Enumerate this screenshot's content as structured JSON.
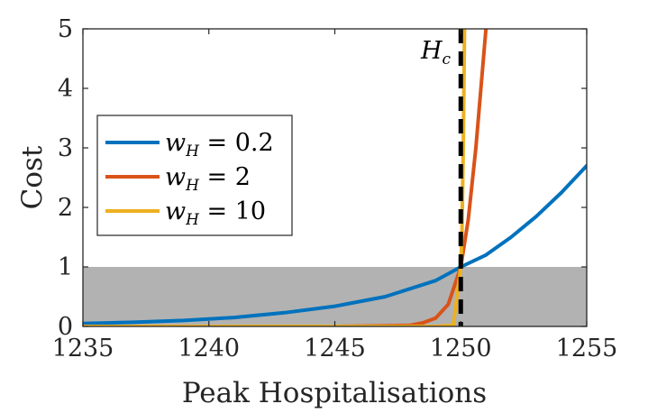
{
  "chart_data": {
    "type": "line",
    "title": "",
    "xlabel": "Peak Hospitalisations",
    "ylabel": "Cost",
    "xlim": [
      1235,
      1255
    ],
    "ylim": [
      0,
      5
    ],
    "xticks": [
      1235,
      1240,
      1245,
      1250,
      1255
    ],
    "yticks": [
      0,
      1,
      2,
      3,
      4,
      5
    ],
    "grid": false,
    "legend_position": "left",
    "threshold": {
      "label": "H",
      "label_sub": "c",
      "x": 1250,
      "style": "dashed",
      "color": "#000000"
    },
    "shaded_region": {
      "y": [
        0,
        1
      ],
      "color": "#b2b2b2"
    },
    "series": [
      {
        "name": "w_H = 0.2",
        "legend": {
          "w": "w",
          "sub": "H",
          "rest": " = 0.2"
        },
        "color": "#0072bd",
        "x": [
          1235,
          1237,
          1239,
          1241,
          1243,
          1245,
          1247,
          1249,
          1250,
          1251,
          1252,
          1253,
          1254,
          1255
        ],
        "y": [
          0.05,
          0.07,
          0.1,
          0.15,
          0.23,
          0.34,
          0.5,
          0.77,
          1.0,
          1.2,
          1.5,
          1.85,
          2.25,
          2.7
        ]
      },
      {
        "name": "w_H = 2",
        "legend": {
          "w": "w",
          "sub": "H",
          "rest": " = 2"
        },
        "color": "#d95319",
        "x": [
          1235,
          1245,
          1247,
          1248,
          1248.5,
          1249,
          1249.5,
          1250,
          1250.3,
          1250.6,
          1250.8,
          1251
        ],
        "y": [
          0,
          0,
          0.01,
          0.02,
          0.06,
          0.14,
          0.37,
          1.0,
          1.8,
          3.0,
          4.0,
          5.0
        ]
      },
      {
        "name": "w_H = 10",
        "legend": {
          "w": "w",
          "sub": "H",
          "rest": " = 10"
        },
        "color": "#edb120",
        "x": [
          1235,
          1249,
          1249.7,
          1250,
          1250.05,
          1250.1,
          1250.15
        ],
        "y": [
          0,
          0,
          0.02,
          1.0,
          1.6,
          3.0,
          5.0
        ]
      }
    ]
  }
}
